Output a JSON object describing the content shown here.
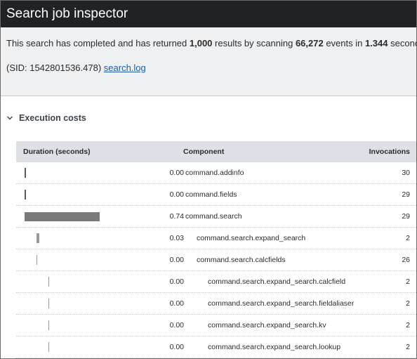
{
  "window": {
    "title": "Search job inspector"
  },
  "summary": {
    "prefix": "This search has completed and has returned ",
    "results": "1,000",
    "mid1": " results by scanning ",
    "events": "66,272",
    "mid2": " events in ",
    "seconds": "1.344",
    "suffix": " seconds",
    "sid": "(SID: 1542801536.478)",
    "log_link": "search.log"
  },
  "section": {
    "title": "Execution costs",
    "icon": "chevron-down-icon"
  },
  "table": {
    "headers": {
      "duration": "Duration (seconds)",
      "component": "Component",
      "invocations": "Invocations"
    },
    "rows": [
      {
        "duration": "0.00",
        "component": "command.addinfo",
        "invocations": "30",
        "depth": 0,
        "value": 0.0
      },
      {
        "duration": "0.00",
        "component": "command.fields",
        "invocations": "29",
        "depth": 0,
        "value": 0.0
      },
      {
        "duration": "0.74",
        "component": "command.search",
        "invocations": "29",
        "depth": 0,
        "value": 0.74
      },
      {
        "duration": "0.03",
        "component": "command.search.expand_search",
        "invocations": "2",
        "depth": 1,
        "value": 0.03
      },
      {
        "duration": "0.00",
        "component": "command.search.calcfields",
        "invocations": "26",
        "depth": 1,
        "value": 0.0
      },
      {
        "duration": "0.00",
        "component": "command.search.expand_search.calcfield",
        "invocations": "2",
        "depth": 2,
        "value": 0.0
      },
      {
        "duration": "0.00",
        "component": "command.search.expand_search.fieldaliaser",
        "invocations": "2",
        "depth": 2,
        "value": 0.0
      },
      {
        "duration": "0.00",
        "component": "command.search.expand_search.kv",
        "invocations": "2",
        "depth": 2,
        "value": 0.0
      },
      {
        "duration": "0.00",
        "component": "command.search.expand_search.lookup",
        "invocations": "2",
        "depth": 2,
        "value": 0.0
      }
    ]
  }
}
